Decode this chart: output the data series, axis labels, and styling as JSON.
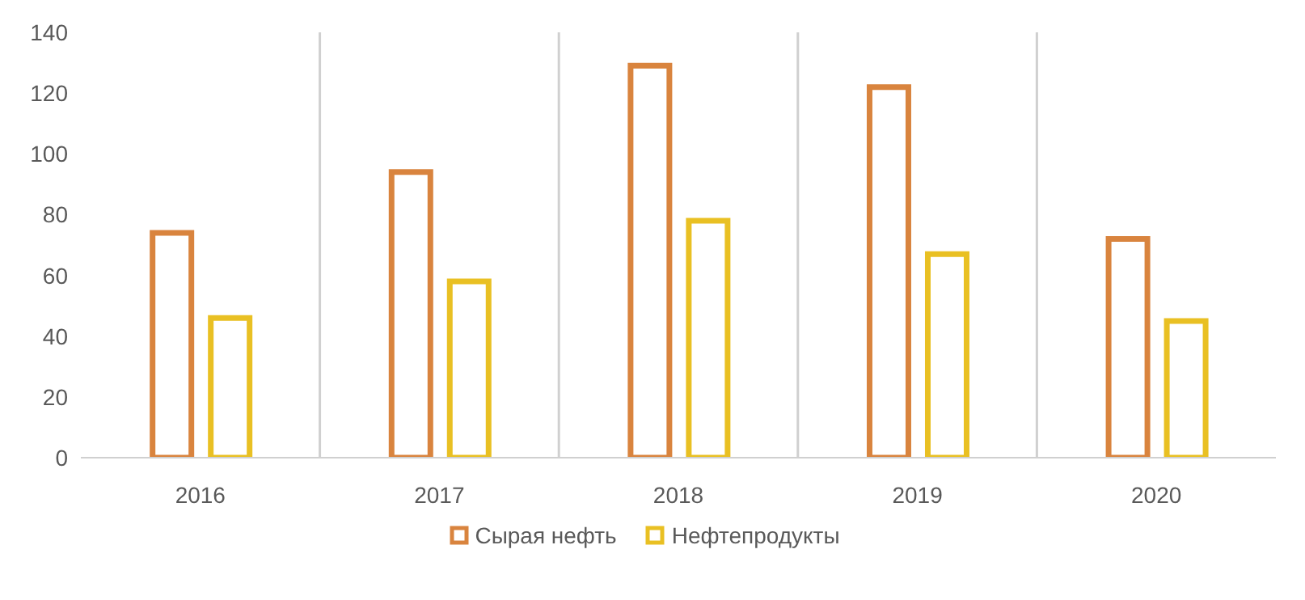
{
  "chart_data": {
    "type": "bar",
    "categories": [
      "2016",
      "2017",
      "2018",
      "2019",
      "2020"
    ],
    "series": [
      {
        "name": "Сырая нефть",
        "color": "#d9843e",
        "values": [
          74,
          94,
          129,
          122,
          72
        ]
      },
      {
        "name": "Нефтепродукты",
        "color": "#e9c023",
        "values": [
          46,
          58,
          78,
          67,
          45
        ]
      }
    ],
    "ylim": [
      0,
      140
    ],
    "yticks": [
      0,
      20,
      40,
      60,
      80,
      100,
      120,
      140
    ],
    "grid": "x",
    "legend": "bottom"
  }
}
